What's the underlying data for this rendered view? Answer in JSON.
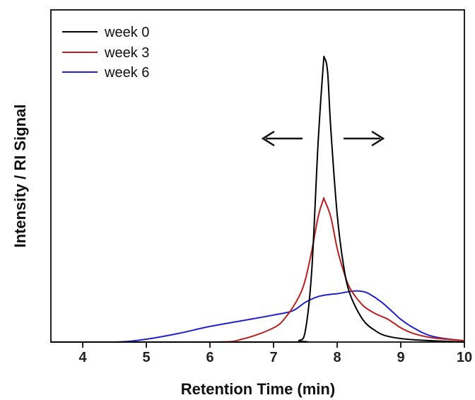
{
  "chart_data": {
    "type": "line",
    "title": "",
    "xlabel": "Retention Time (min)",
    "ylabel": "Intensity / RI Signal",
    "xlim": [
      3.5,
      10
    ],
    "ylim": [
      0,
      1.0
    ],
    "x_ticks": [
      "4",
      "5",
      "6",
      "7",
      "8",
      "9",
      "10"
    ],
    "grid": false,
    "legend_position": "top-left",
    "annotations": [
      "left arrow",
      "right arrow"
    ],
    "series": [
      {
        "name": "week 0",
        "color": "#000000",
        "points": [
          [
            3.5,
            0
          ],
          [
            7.2,
            0
          ],
          [
            7.4,
            0.005
          ],
          [
            7.5,
            0.04
          ],
          [
            7.6,
            0.25
          ],
          [
            7.7,
            0.7
          ],
          [
            7.78,
            0.97
          ],
          [
            7.8,
            1.0
          ],
          [
            7.85,
            0.95
          ],
          [
            7.9,
            0.75
          ],
          [
            8.0,
            0.45
          ],
          [
            8.1,
            0.27
          ],
          [
            8.2,
            0.17
          ],
          [
            8.4,
            0.08
          ],
          [
            8.6,
            0.04
          ],
          [
            8.8,
            0.02
          ],
          [
            9.2,
            0.008
          ],
          [
            10,
            0
          ]
        ]
      },
      {
        "name": "week 3",
        "color": "#bb2020",
        "points": [
          [
            3.5,
            0
          ],
          [
            6.0,
            0
          ],
          [
            6.5,
            0.01
          ],
          [
            7.0,
            0.05
          ],
          [
            7.2,
            0.09
          ],
          [
            7.4,
            0.16
          ],
          [
            7.5,
            0.22
          ],
          [
            7.6,
            0.32
          ],
          [
            7.7,
            0.44
          ],
          [
            7.78,
            0.5
          ],
          [
            7.8,
            0.5
          ],
          [
            7.9,
            0.44
          ],
          [
            8.0,
            0.33
          ],
          [
            8.1,
            0.25
          ],
          [
            8.2,
            0.19
          ],
          [
            8.4,
            0.13
          ],
          [
            8.6,
            0.1
          ],
          [
            8.8,
            0.08
          ],
          [
            9.0,
            0.05
          ],
          [
            9.2,
            0.03
          ],
          [
            9.5,
            0.015
          ],
          [
            10,
            0.005
          ]
        ]
      },
      {
        "name": "week 6",
        "color": "#2222cc",
        "points": [
          [
            3.5,
            0
          ],
          [
            4.5,
            0
          ],
          [
            5.0,
            0.01
          ],
          [
            5.5,
            0.03
          ],
          [
            6.0,
            0.055
          ],
          [
            6.5,
            0.075
          ],
          [
            7.0,
            0.095
          ],
          [
            7.3,
            0.11
          ],
          [
            7.5,
            0.14
          ],
          [
            7.7,
            0.16
          ],
          [
            7.9,
            0.168
          ],
          [
            8.0,
            0.17
          ],
          [
            8.2,
            0.178
          ],
          [
            8.3,
            0.18
          ],
          [
            8.4,
            0.178
          ],
          [
            8.5,
            0.17
          ],
          [
            8.7,
            0.14
          ],
          [
            8.9,
            0.1
          ],
          [
            9.0,
            0.08
          ],
          [
            9.2,
            0.05
          ],
          [
            9.5,
            0.02
          ],
          [
            10,
            0.004
          ]
        ]
      }
    ]
  }
}
